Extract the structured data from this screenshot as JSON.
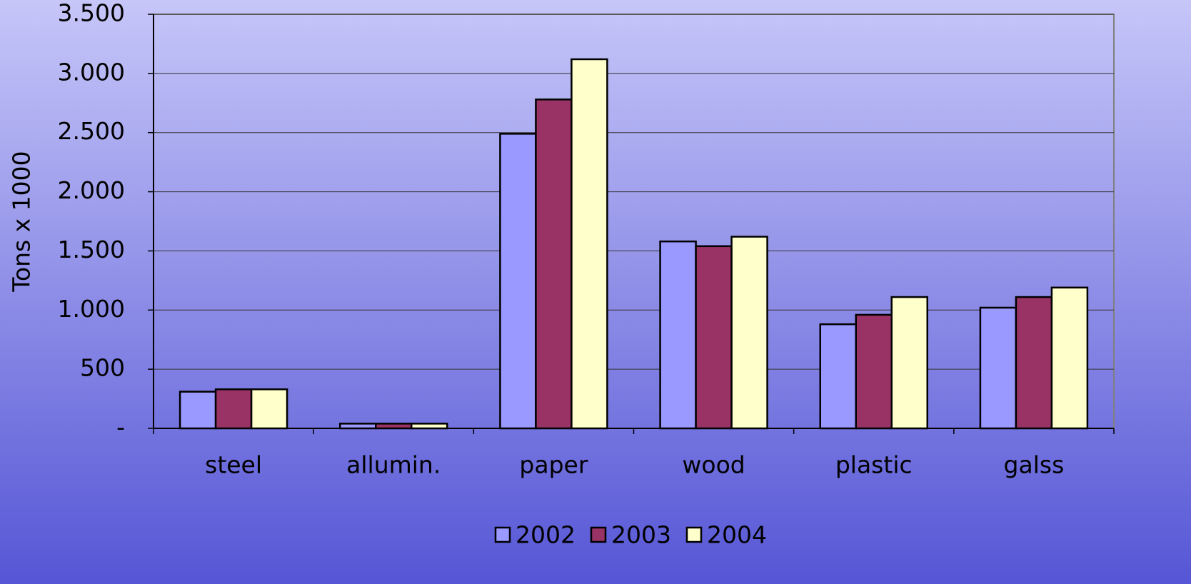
{
  "chart_data": {
    "type": "bar",
    "y_label": "Tons x 1000",
    "categories": [
      "steel",
      "allumin.",
      "paper",
      "wood",
      "plastic",
      "galss"
    ],
    "series": [
      {
        "name": "2002",
        "color": "#9999ff",
        "values": [
          310,
          40,
          2490,
          1580,
          880,
          1020
        ]
      },
      {
        "name": "2003",
        "color": "#993366",
        "values": [
          330,
          40,
          2780,
          1540,
          960,
          1110
        ]
      },
      {
        "name": "2004",
        "color": "#ffffcc",
        "values": [
          330,
          40,
          3120,
          1620,
          1110,
          1190
        ]
      }
    ],
    "ylim": [
      0,
      3500
    ],
    "yticks": [
      {
        "value": 0,
        "label": "-"
      },
      500,
      {
        "value": 1000,
        "label": "1.000"
      },
      {
        "value": 1500,
        "label": "1.500"
      },
      {
        "value": 2000,
        "label": "2.000"
      },
      {
        "value": 2500,
        "label": "2.500"
      },
      {
        "value": 3000,
        "label": "3.000"
      },
      {
        "value": 3500,
        "label": "3.500"
      }
    ],
    "grid": true,
    "legend": "bottom"
  }
}
